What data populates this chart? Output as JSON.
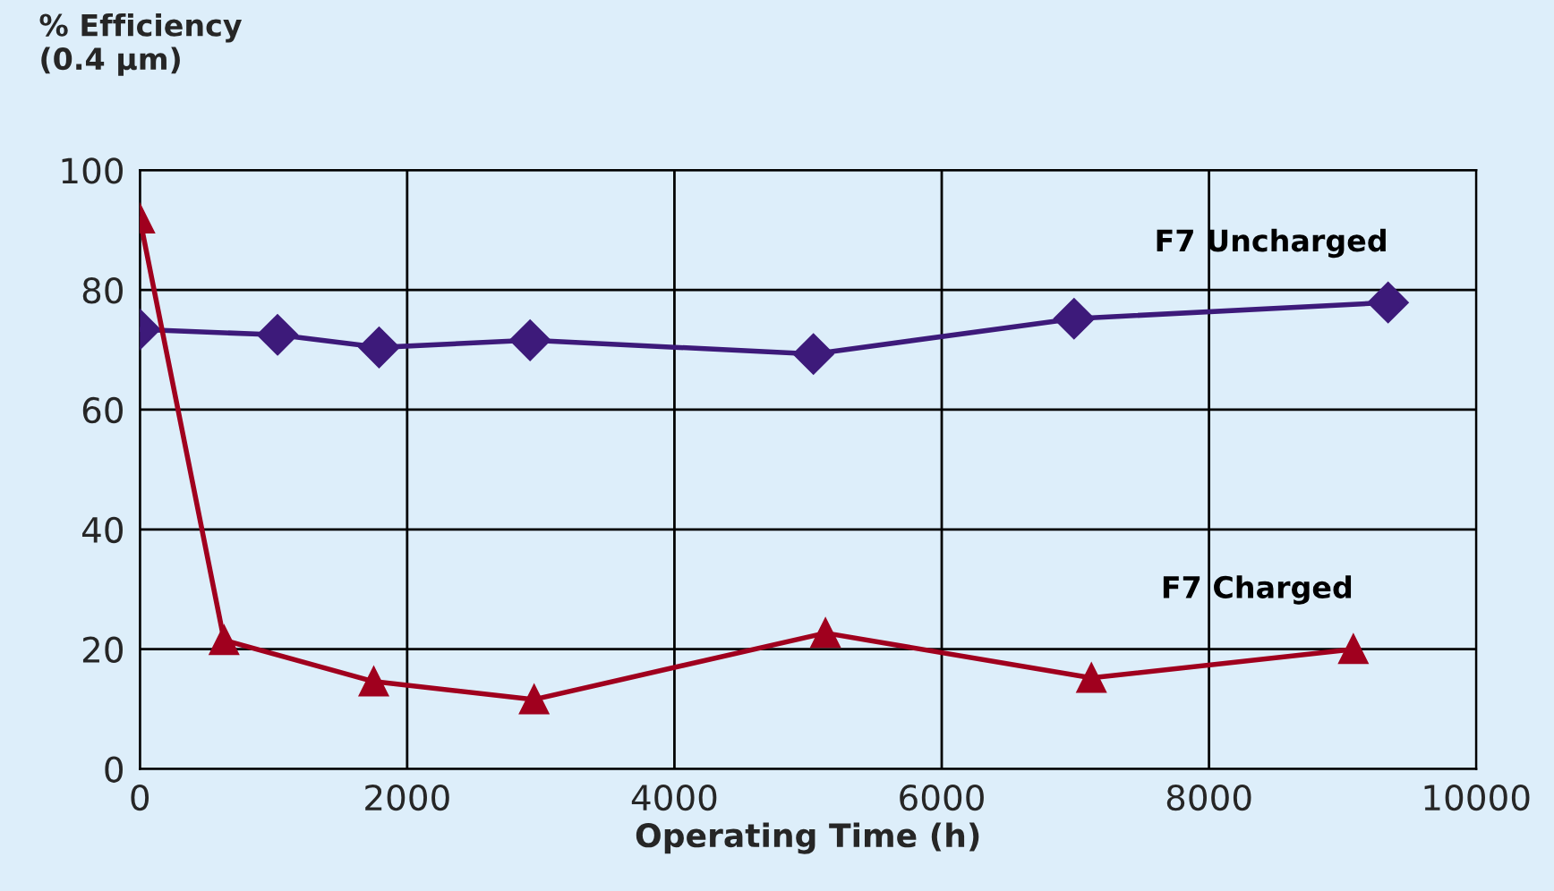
{
  "chart_data": {
    "type": "line",
    "ylabel": "% Efficiency\n(0.4 µm)",
    "xlabel": "Operating Time (h)",
    "xlim": [
      0,
      10000
    ],
    "xticks": [
      0,
      2000,
      4000,
      6000,
      8000,
      10000
    ],
    "ylim": [
      0,
      100
    ],
    "yticks": [
      0,
      20,
      40,
      60,
      80,
      100
    ],
    "grid": true,
    "legend": false,
    "series": [
      {
        "name": "F7 Uncharged",
        "color": "#3d1a7a",
        "marker": "diamond",
        "x": [
          0,
          1030,
          1790,
          2920,
          5040,
          6990,
          9340
        ],
        "values": [
          73.4,
          72.5,
          70.4,
          71.6,
          69.3,
          75.2,
          77.9
        ]
      },
      {
        "name": "F7 Charged",
        "color": "#a0001e",
        "marker": "triangle",
        "x": [
          0,
          630,
          1750,
          2950,
          5130,
          7120,
          9080
        ],
        "values": [
          91.9,
          21.5,
          14.6,
          11.6,
          22.7,
          15.2,
          20.0
        ]
      }
    ]
  }
}
